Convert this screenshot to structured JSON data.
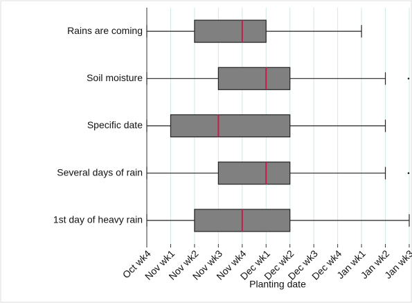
{
  "chart_data": {
    "type": "boxplot",
    "orientation": "horizontal",
    "x_label": "Planting date",
    "categories": [
      "Rains are coming",
      "Soil moisture",
      "Specific date",
      "Several days of rain",
      "1st day of heavy rain"
    ],
    "min": [
      0,
      0,
      0,
      0,
      0
    ],
    "q1": [
      2,
      3,
      1,
      3,
      2
    ],
    "median": [
      4,
      5,
      3,
      5,
      4
    ],
    "q3": [
      5,
      6,
      6,
      6,
      6
    ],
    "max": [
      9,
      10,
      10,
      10,
      11
    ],
    "outliers": [
      [],
      [
        11
      ],
      [],
      [
        11
      ],
      []
    ],
    "xlim": [
      0,
      11
    ],
    "xticks": [
      {
        "value": 0,
        "label": "Oct wk4"
      },
      {
        "value": 1,
        "label": "Nov wk1"
      },
      {
        "value": 2,
        "label": "Nov wk2"
      },
      {
        "value": 3,
        "label": "Nov wk3"
      },
      {
        "value": 4,
        "label": "Nov wk4"
      },
      {
        "value": 5,
        "label": "Dec wk1"
      },
      {
        "value": 6,
        "label": "Dec wk2"
      },
      {
        "value": 7,
        "label": "Dec wk3"
      },
      {
        "value": 8,
        "label": "Dec wk4"
      },
      {
        "value": 9,
        "label": "Jan wk1"
      },
      {
        "value": 10,
        "label": "Jan wk2"
      },
      {
        "value": 11,
        "label": "Jan wk3"
      }
    ],
    "grid": true,
    "grid_color": "#cfe8e6",
    "box_color": "#808080",
    "median_color": "#c41c4c"
  }
}
